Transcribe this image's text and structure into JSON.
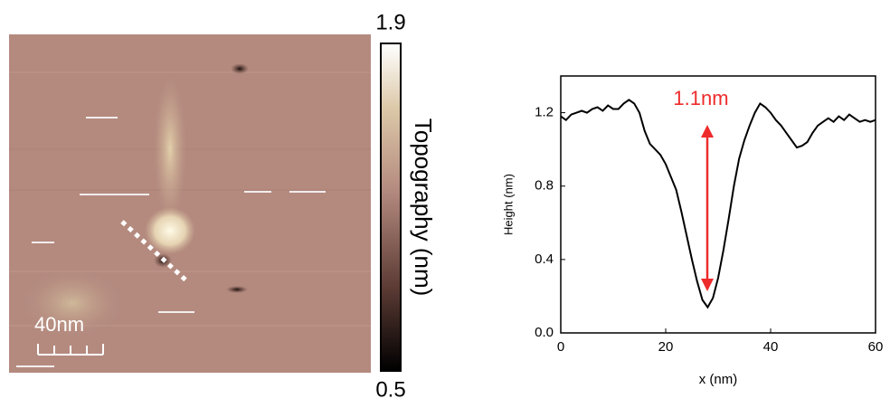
{
  "image": {
    "scale_bar": "40nm",
    "colorbar": {
      "label": "Topography (nm)",
      "lim": [
        0.5,
        1.9
      ],
      "ticks": [
        0.5,
        1.9
      ]
    }
  },
  "chart_data": {
    "type": "line",
    "x_label": "x (nm)",
    "y_label": "Height (nm)",
    "annotation": "1.1nm",
    "xlim": [
      0,
      60
    ],
    "ylim": [
      0,
      1.4
    ],
    "xticks": [
      0,
      20,
      40,
      60
    ],
    "yticks": [
      {
        "value": 0,
        "label": "0.0"
      },
      0.4,
      0.8,
      1.2
    ],
    "series": [
      {
        "color": "#000000",
        "x": [
          0,
          1,
          2,
          3,
          4,
          5,
          6,
          7,
          8,
          9,
          10,
          11,
          12,
          13,
          14,
          15,
          16,
          17,
          18,
          19,
          20,
          21,
          22,
          23,
          24,
          25,
          26,
          27,
          28,
          29,
          30,
          31,
          32,
          33,
          34,
          35,
          36,
          37,
          38,
          39,
          40,
          41,
          42,
          43,
          44,
          45,
          46,
          47,
          48,
          49,
          50,
          51,
          52,
          53,
          54,
          55,
          56,
          57,
          58,
          59,
          60
        ],
        "values": [
          1.18,
          1.16,
          1.19,
          1.2,
          1.21,
          1.2,
          1.22,
          1.23,
          1.21,
          1.24,
          1.22,
          1.22,
          1.25,
          1.27,
          1.25,
          1.2,
          1.1,
          1.03,
          1.0,
          0.97,
          0.92,
          0.85,
          0.78,
          0.66,
          0.53,
          0.4,
          0.28,
          0.18,
          0.14,
          0.19,
          0.3,
          0.45,
          0.62,
          0.8,
          0.95,
          1.05,
          1.13,
          1.2,
          1.25,
          1.23,
          1.2,
          1.16,
          1.13,
          1.09,
          1.05,
          1.01,
          1.02,
          1.04,
          1.09,
          1.13,
          1.15,
          1.17,
          1.15,
          1.18,
          1.16,
          1.19,
          1.17,
          1.15,
          1.16,
          1.15,
          1.16
        ]
      }
    ]
  }
}
